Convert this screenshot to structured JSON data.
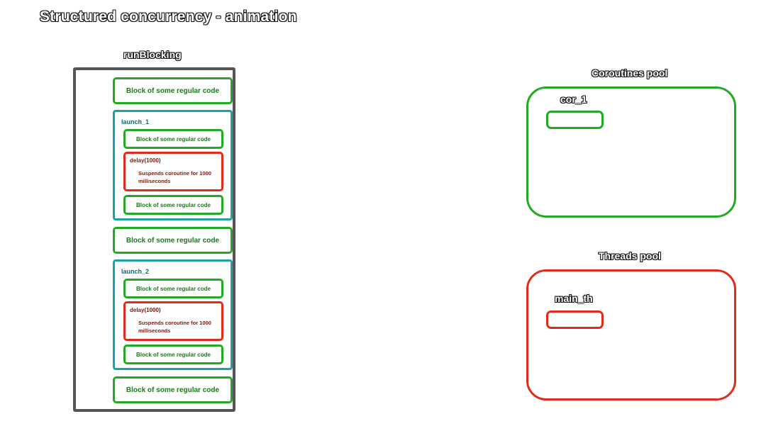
{
  "title": "Structured concurrency - animation",
  "run_blocking": {
    "label": "runBlocking",
    "block_label": "Block of some regular code"
  },
  "launch_1": {
    "label": "launch_1",
    "block_label": "Block of some regular code",
    "delay_label": "delay(1000)",
    "delay_desc": "Suspends coroutine for 1000 milliseconds"
  },
  "launch_2": {
    "label": "launch_2",
    "block_label": "Block of some regular code",
    "delay_label": "delay(1000)",
    "delay_desc": "Suspends coroutine for 1000 milliseconds"
  },
  "coroutines_pool": {
    "label": "Coroutines pool",
    "item_label": "cor_1",
    "color": "#22aa22"
  },
  "threads_pool": {
    "label": "Threads pool",
    "item_label": "main_th",
    "color": "#e02b1a"
  },
  "colors": {
    "run_blocking": "#555555",
    "regular_code": "#22aa22",
    "launch": "#1aa3a3",
    "delay": "#e02b1a"
  }
}
